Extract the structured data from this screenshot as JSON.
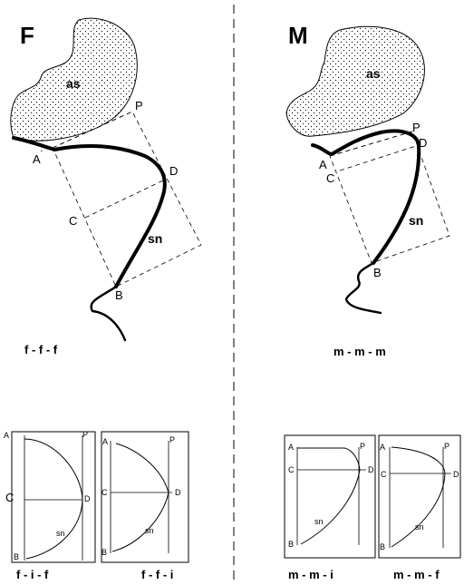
{
  "panels": {
    "left_letter": "F",
    "right_letter": "M"
  },
  "labels": {
    "as": "as",
    "sn": "sn",
    "A": "A",
    "B": "B",
    "C": "C",
    "D": "D",
    "P": "P"
  },
  "codes": {
    "left_main": "f - f - f",
    "right_main": "m - m - m",
    "box1": "f - i - f",
    "box2": "f - f - i",
    "box3": "m - m - i",
    "box4": "m - m - f"
  }
}
